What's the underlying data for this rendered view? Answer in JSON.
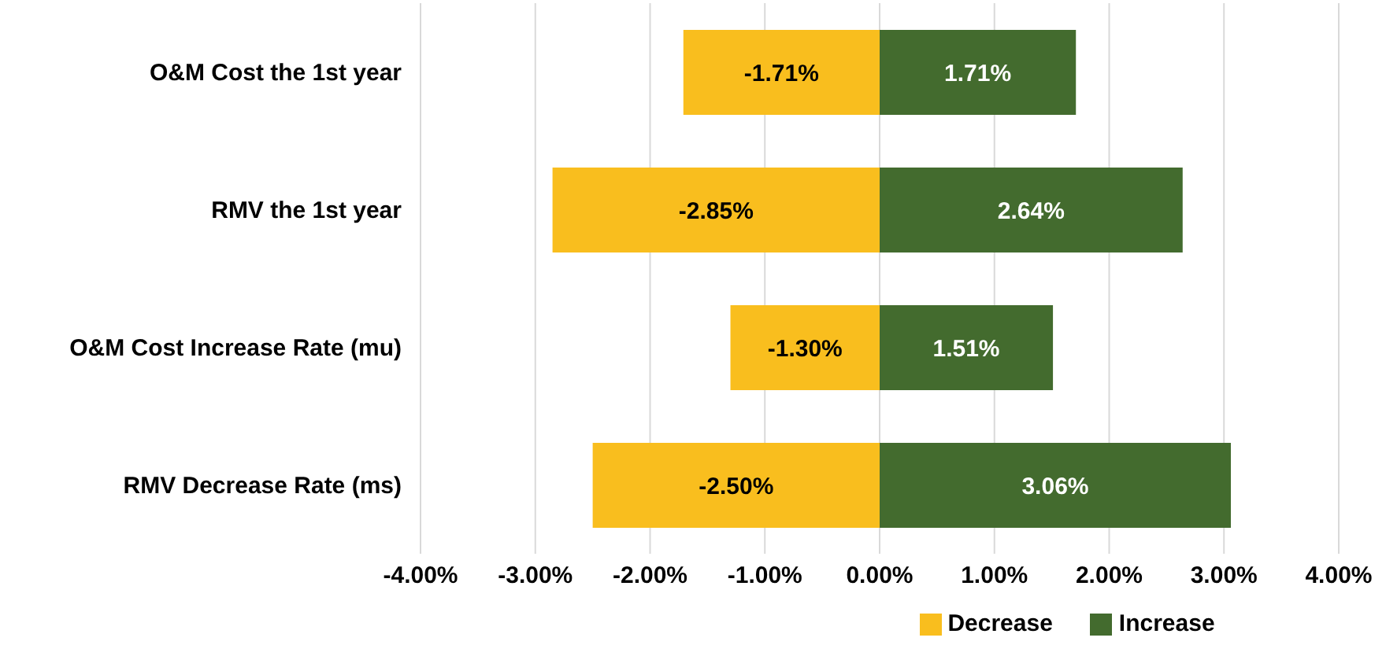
{
  "chart_data": {
    "type": "bar",
    "orientation": "horizontal",
    "stacked": true,
    "categories": [
      "O&M Cost the 1st year",
      "RMV the 1st year",
      "O&M Cost Increase Rate (mu)",
      "RMV Decrease Rate (ms)"
    ],
    "series": [
      {
        "name": "Decrease",
        "color": "#f9be1e",
        "values": [
          -1.71,
          -2.85,
          -1.3,
          -2.5
        ],
        "value_labels": [
          "-1.71%",
          "-2.85%",
          "-1.30%",
          "-2.50%"
        ]
      },
      {
        "name": "Increase",
        "color": "#436b2e",
        "values": [
          1.71,
          2.64,
          1.51,
          3.06
        ],
        "value_labels": [
          "1.71%",
          "2.64%",
          "1.51%",
          "3.06%"
        ]
      }
    ],
    "xlim": [
      -4,
      4
    ],
    "xticks": [
      {
        "value": -4,
        "label": "-4.00%"
      },
      {
        "value": -3,
        "label": "-3.00%"
      },
      {
        "value": -2,
        "label": "-2.00%"
      },
      {
        "value": -1,
        "label": "-1.00%"
      },
      {
        "value": 0,
        "label": "0.00%"
      },
      {
        "value": 1,
        "label": "1.00%"
      },
      {
        "value": 2,
        "label": "2.00%"
      },
      {
        "value": 3,
        "label": "3.00%"
      },
      {
        "value": 4,
        "label": "4.00%"
      }
    ],
    "grid": "x",
    "legend": "bottom"
  }
}
